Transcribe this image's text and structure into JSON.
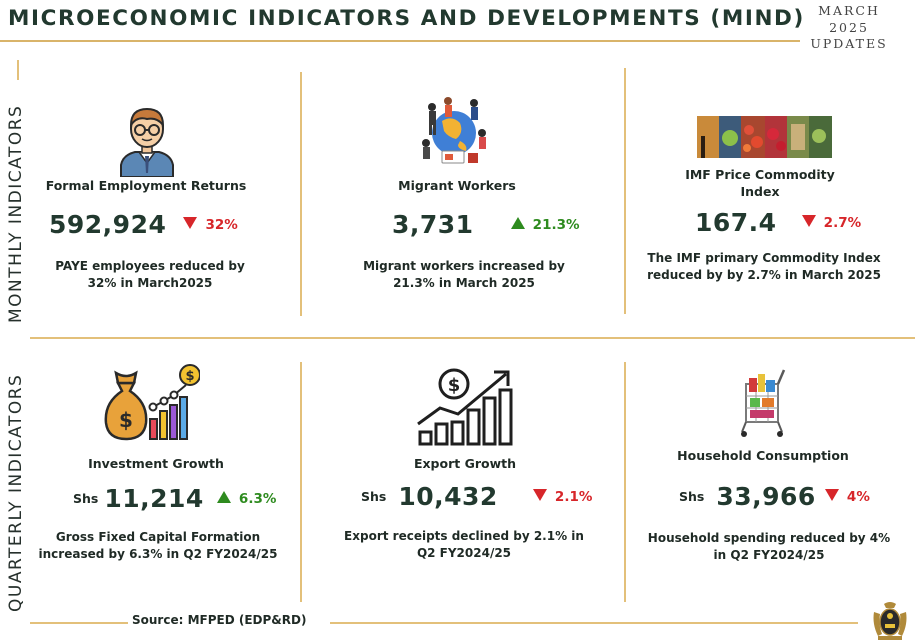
{
  "header": {
    "title": "MICROECONOMIC INDICATORS AND DEVELOPMENTS (MIND)",
    "date_line1": "MARCH",
    "date_line2": "2025",
    "date_line3": "UPDATES"
  },
  "sections": {
    "monthly_label": "MONTHLY INDICATORS",
    "quarterly_label": "QUARTERLY INDICATORS"
  },
  "monthly": [
    {
      "name": "Formal Employment Returns",
      "value": "592,924",
      "change": "32%",
      "direction": "down",
      "desc_line1": "PAYE employees reduced by",
      "desc_line2": "32% in March2025",
      "icon": "employee-icon"
    },
    {
      "name": "Migrant Workers",
      "value": "3,731",
      "change": "21.3%",
      "direction": "up",
      "desc_line1": "Migrant workers  increased by",
      "desc_line2": "21.3% in March 2025",
      "icon": "migrant-workers-icon"
    },
    {
      "name_line1": "IMF Price Commodity",
      "name_line2": "Index",
      "value": "167.4",
      "change": "2.7%",
      "direction": "down",
      "desc_line1": "The IMF primary  Commodity Index",
      "desc_line2": "reduced by by 2.7% in March 2025",
      "icon": "commodities-photo-icon"
    }
  ],
  "quarterly": [
    {
      "name": "Investment Growth",
      "prefix": "Shs",
      "value": "11,214",
      "change": "6.3%",
      "direction": "up",
      "desc_line1": "Gross Fixed Capital Formation",
      "desc_line2": "increased by 6.3% in Q2 FY2024/25",
      "icon": "money-bag-chart-icon"
    },
    {
      "name": "Export Growth",
      "prefix": "Shs",
      "value": "10,432",
      "change": "2.1%",
      "direction": "down",
      "desc_line1": "Export receipts declined by 2.1% in",
      "desc_line2": "Q2 FY2024/25",
      "icon": "growth-chart-icon"
    },
    {
      "name": "Household Consumption",
      "prefix": "Shs",
      "value": "33,966",
      "change": "4%",
      "direction": "down",
      "desc_line1": "Household spending reduced by 4%",
      "desc_line2": "in Q2 FY2024/25",
      "icon": "shopping-cart-icon"
    }
  ],
  "footer": {
    "source": "Source:  MFPED (EDP&RD)",
    "emblem": "uganda-coat-of-arms-icon"
  },
  "colors": {
    "accent_gold": "#e3c07a",
    "title_green": "#22392f",
    "decrease_red": "#d7262a",
    "increase_green": "#2e8b1f"
  }
}
